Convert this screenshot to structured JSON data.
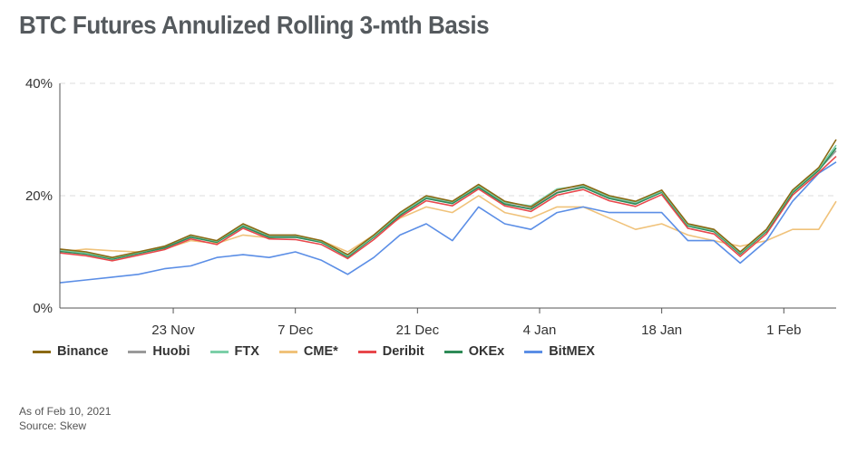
{
  "title": "BTC Futures Annulized Rolling 3-mth Basis",
  "footer": {
    "as_of": "As of Feb 10, 2021",
    "source": "Source: Skew"
  },
  "chart_data": {
    "type": "line",
    "title": "BTC Futures Annulized Rolling 3-mth Basis",
    "x_tick_labels": [
      "23 Nov",
      "7 Dec",
      "21 Dec",
      "4 Jan",
      "18 Jan",
      "1 Feb"
    ],
    "x_tick_days": [
      13,
      27,
      41,
      55,
      69,
      83
    ],
    "x_range_days": [
      0,
      89
    ],
    "x_day0": "10 Nov 2020",
    "y_tick_labels": [
      "0%",
      "20%",
      "40%"
    ],
    "y_ticks": [
      0,
      20,
      40
    ],
    "ylim": [
      0,
      40
    ],
    "grid": "horizontal dashed",
    "legend_position": "bottom",
    "x": [
      0,
      3,
      6,
      9,
      12,
      15,
      18,
      21,
      24,
      27,
      30,
      33,
      36,
      39,
      42,
      45,
      48,
      51,
      54,
      57,
      60,
      63,
      66,
      69,
      72,
      75,
      78,
      81,
      84,
      87,
      89
    ],
    "series": [
      {
        "name": "Binance",
        "color": "#8B6914",
        "values": [
          10.5,
          10,
          9,
          10,
          11,
          13,
          12,
          15,
          13,
          13,
          12,
          9.5,
          13,
          17,
          20,
          19,
          22,
          19,
          18,
          21,
          22,
          20,
          19,
          21,
          15,
          14,
          10,
          14,
          21,
          25,
          30
        ]
      },
      {
        "name": "Huobi",
        "color": "#9a9a9a",
        "values": [
          10.2,
          9.7,
          8.8,
          9.8,
          10.8,
          12.7,
          11.8,
          14.6,
          12.8,
          12.7,
          11.8,
          9.2,
          12.7,
          16.6,
          19.6,
          18.7,
          21.6,
          18.6,
          17.7,
          20.6,
          21.6,
          19.6,
          18.6,
          20.7,
          14.7,
          13.7,
          9.7,
          13.7,
          20.6,
          24.6,
          28
        ]
      },
      {
        "name": "FTX",
        "color": "#7ccfa8",
        "values": [
          10.3,
          9.8,
          8.9,
          9.9,
          11,
          12.9,
          11.9,
          14.8,
          12.9,
          12.9,
          11.9,
          9.3,
          12.8,
          16.8,
          19.8,
          18.9,
          21.8,
          18.8,
          18.2,
          21.2,
          21.8,
          19.8,
          18.8,
          20.8,
          14.8,
          13.8,
          9.8,
          13.8,
          20.8,
          24.8,
          29
        ]
      },
      {
        "name": "CME*",
        "color": "#f0c27a",
        "values": [
          10,
          10.5,
          10.2,
          10,
          10.5,
          12,
          11.5,
          13,
          12.5,
          13,
          12,
          10,
          13,
          16,
          18,
          17,
          20,
          17,
          16,
          18,
          18,
          16,
          14,
          15,
          13,
          12,
          11,
          12,
          14,
          14,
          19
        ]
      },
      {
        "name": "Deribit",
        "color": "#e8474b",
        "values": [
          9.8,
          9.3,
          8.4,
          9.4,
          10.4,
          12.3,
          11.3,
          14.2,
          12.3,
          12.2,
          11.3,
          8.8,
          12.2,
          16.2,
          19.1,
          18.2,
          21.2,
          18.2,
          17.2,
          20.1,
          21.1,
          19.1,
          18.1,
          20.2,
          14.2,
          13.2,
          9.2,
          13.2,
          20.1,
          24.1,
          27
        ]
      },
      {
        "name": "OKEx",
        "color": "#2e8b57",
        "values": [
          10.1,
          9.6,
          8.7,
          9.7,
          10.7,
          12.6,
          11.7,
          14.5,
          12.6,
          12.6,
          11.7,
          9.1,
          12.6,
          16.5,
          19.5,
          18.6,
          21.5,
          18.5,
          17.6,
          20.5,
          21.5,
          19.5,
          18.5,
          20.6,
          14.6,
          13.6,
          9.6,
          13.6,
          20.5,
          24.5,
          28.5
        ]
      },
      {
        "name": "BitMEX",
        "color": "#5b8ee6",
        "values": [
          4.5,
          5,
          5.5,
          6,
          7,
          7.5,
          9,
          9.5,
          9,
          10,
          8.5,
          6,
          9,
          13,
          15,
          12,
          18,
          15,
          14,
          17,
          18,
          17,
          17,
          17,
          12,
          12,
          8,
          12,
          19,
          24,
          26
        ]
      }
    ]
  }
}
